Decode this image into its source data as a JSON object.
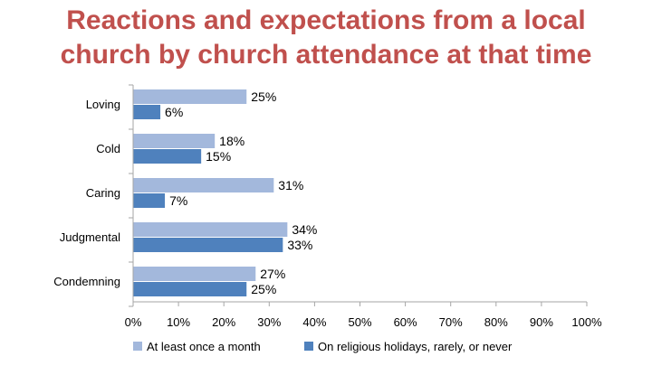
{
  "title_lines": [
    "Reactions and expectations from a local",
    "church by church attendance at that time"
  ],
  "chart_data": {
    "type": "bar",
    "orientation": "horizontal",
    "title": "Reactions and expectations from a local church by church attendance at that time",
    "categories": [
      "Loving",
      "Cold",
      "Caring",
      "Judgmental",
      "Condemning"
    ],
    "series": [
      {
        "name": "At least once a month",
        "color": "#a3b8dc",
        "values": [
          25,
          18,
          31,
          34,
          27
        ],
        "labels": [
          "25%",
          "18%",
          "31%",
          "34%",
          "27%"
        ]
      },
      {
        "name": "On religious holidays, rarely, or never",
        "color": "#4f81bd",
        "values": [
          6,
          15,
          7,
          33,
          25
        ],
        "labels": [
          "6%",
          "15%",
          "7%",
          "33%",
          "25%"
        ]
      }
    ],
    "xlim": [
      0,
      100
    ],
    "x_ticks": [
      0,
      10,
      20,
      30,
      40,
      50,
      60,
      70,
      80,
      90,
      100
    ],
    "x_tick_labels": [
      "0%",
      "10%",
      "20%",
      "30%",
      "40%",
      "50%",
      "60%",
      "70%",
      "80%",
      "90%",
      "100%"
    ],
    "grid": false,
    "legend_position": "bottom",
    "xlabel": "",
    "ylabel": ""
  }
}
